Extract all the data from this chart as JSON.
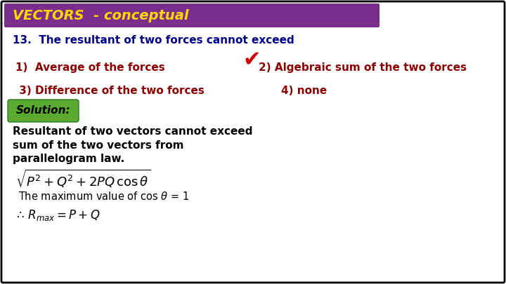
{
  "title": "VECTORS  - conceptual",
  "title_bg_color": "#7B2D8B",
  "title_text_color": "#FFD700",
  "question": "13.  The resultant of two forces cannot exceed",
  "question_color": "#00008B",
  "opt1_text": "1)  Average of the forces",
  "opt2_text": "2) Algebraic sum of the two forces",
  "opt3_text": " 3) Difference of the two forces",
  "opt4_text": "4) none",
  "opt_color": "#8B0000",
  "checkmark": "✔",
  "checkmark_color": "#CC0000",
  "solution_label": "Solution:",
  "solution_bg": "#5aaa30",
  "body_line1": "Resultant of two vectors cannot exceed",
  "body_line2": "sum of the two vectors from",
  "body_line3": "parallelogram law.",
  "body_color": "#000000",
  "formula": "$\\sqrt{P^2 + Q^2 + 2PQ\\,\\cos\\theta}$",
  "maxcos": "The maximum value of cos $\\theta$ = 1",
  "result": "$\\therefore\\, R_{max} = P + Q$",
  "bg_color": "#FFFFFF",
  "border_color": "#000000"
}
